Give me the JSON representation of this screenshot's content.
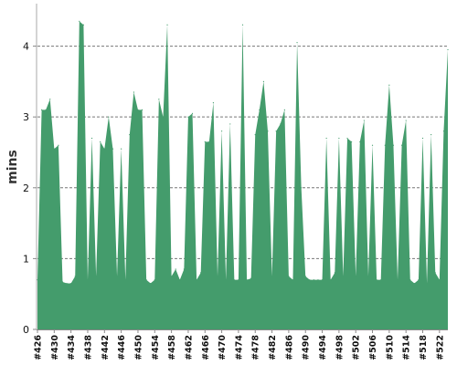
{
  "chart_data": {
    "type": "area",
    "title": "",
    "xlabel": "",
    "ylabel": "mins",
    "ylim": [
      0,
      4.6
    ],
    "yticks": [
      0,
      1,
      2,
      3,
      4
    ],
    "grid": "horizontal dashed",
    "legend": "none",
    "series_color": "#449c6c",
    "x": [
      "#426",
      "#427",
      "#428",
      "#429",
      "#430",
      "#431",
      "#432",
      "#433",
      "#434",
      "#435",
      "#436",
      "#437",
      "#438",
      "#439",
      "#440",
      "#441",
      "#442",
      "#443",
      "#444",
      "#445",
      "#446",
      "#447",
      "#448",
      "#449",
      "#450",
      "#451",
      "#452",
      "#453",
      "#454",
      "#455",
      "#456",
      "#457",
      "#458",
      "#459",
      "#460",
      "#461",
      "#462",
      "#463",
      "#464",
      "#465",
      "#466",
      "#467",
      "#468",
      "#469",
      "#470",
      "#471",
      "#472",
      "#473",
      "#474",
      "#475",
      "#476",
      "#477",
      "#478",
      "#479",
      "#480",
      "#481",
      "#482",
      "#483",
      "#484",
      "#485",
      "#486",
      "#487",
      "#488",
      "#489",
      "#490",
      "#491",
      "#492",
      "#493",
      "#494",
      "#495",
      "#496",
      "#497",
      "#498",
      "#499",
      "#500",
      "#501",
      "#502",
      "#503",
      "#504",
      "#505",
      "#506",
      "#507",
      "#508",
      "#509",
      "#510",
      "#511",
      "#512",
      "#513",
      "#514",
      "#515",
      "#516",
      "#517",
      "#518",
      "#519",
      "#520",
      "#521",
      "#522",
      "#523",
      "#524"
    ],
    "xtick_labels": [
      "#426",
      "#430",
      "#434",
      "#438",
      "#442",
      "#446",
      "#450",
      "#454",
      "#458",
      "#462",
      "#466",
      "#470",
      "#474",
      "#478",
      "#482",
      "#486",
      "#490",
      "#494",
      "#498",
      "#502",
      "#506",
      "#510",
      "#514",
      "#518",
      "#522"
    ],
    "values": [
      0.7,
      3.1,
      3.1,
      3.25,
      2.55,
      2.6,
      0.67,
      0.65,
      0.65,
      0.75,
      4.35,
      4.3,
      0.7,
      2.7,
      0.75,
      2.65,
      2.55,
      3.0,
      2.55,
      0.75,
      2.55,
      0.7,
      2.75,
      3.35,
      3.1,
      3.1,
      0.7,
      0.65,
      0.7,
      3.25,
      3.0,
      4.3,
      0.75,
      0.85,
      0.7,
      0.85,
      3.0,
      3.05,
      0.7,
      0.8,
      2.65,
      2.65,
      3.2,
      0.75,
      2.8,
      0.7,
      2.9,
      0.7,
      0.7,
      4.3,
      0.7,
      0.72,
      2.75,
      3.1,
      3.5,
      2.8,
      0.75,
      2.8,
      2.9,
      3.1,
      0.75,
      0.7,
      4.05,
      2.0,
      0.75,
      0.7,
      0.7,
      0.7,
      0.7,
      2.7,
      0.7,
      0.8,
      2.7,
      0.75,
      2.7,
      2.65,
      0.75,
      2.65,
      2.95,
      0.75,
      2.6,
      0.7,
      0.7,
      2.6,
      3.45,
      2.6,
      0.7,
      2.6,
      2.95,
      0.7,
      0.65,
      0.7,
      2.7,
      0.65,
      2.75,
      0.8,
      0.7,
      2.8,
      3.95
    ]
  }
}
